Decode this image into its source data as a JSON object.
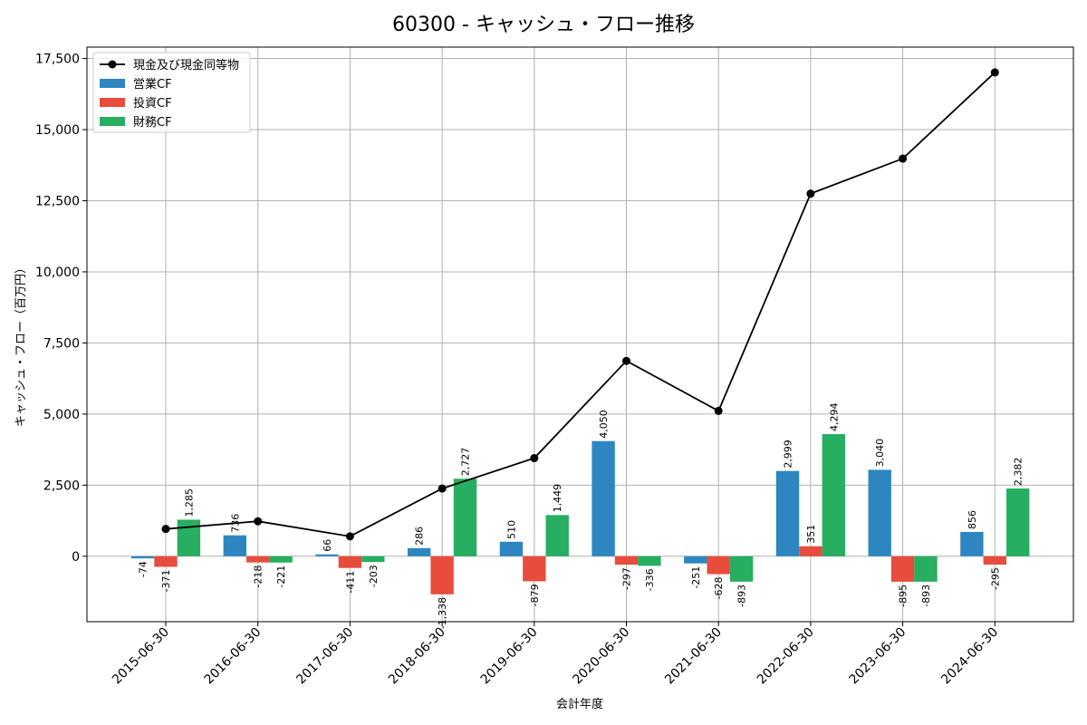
{
  "chart_data": {
    "type": "bar",
    "title": "60300 - キャッシュ・フロー推移",
    "xlabel": "会計年度",
    "ylabel": "キャッシュ・フロー（百万円）",
    "ylim": [
      -2300,
      17900
    ],
    "yticks": [
      0,
      2500,
      5000,
      7500,
      10000,
      12500,
      15000,
      17500
    ],
    "ytick_labels": [
      "0",
      "2,500",
      "5,000",
      "7,500",
      "10,000",
      "12,500",
      "15,000",
      "17,500"
    ],
    "grid": true,
    "legend_position": "top-left",
    "categories": [
      "2015-06-30",
      "2016-06-30",
      "2017-06-30",
      "2018-06-30",
      "2019-06-30",
      "2020-06-30",
      "2021-06-30",
      "2022-06-30",
      "2023-06-30",
      "2024-06-30"
    ],
    "series": [
      {
        "name": "営業CF",
        "kind": "bar",
        "color": "#2e86c1",
        "values": [
          -74,
          736,
          66,
          286,
          510,
          4050,
          -251,
          2999,
          3040,
          856
        ],
        "labels": [
          "-74",
          "736",
          "66",
          "286",
          "510",
          "4,050",
          "-251",
          "2,999",
          "3,040",
          "856"
        ]
      },
      {
        "name": "投資CF",
        "kind": "bar",
        "color": "#e74c3c",
        "values": [
          -371,
          -218,
          -411,
          -1338,
          -879,
          -297,
          -628,
          351,
          -895,
          -295
        ],
        "labels": [
          "-371",
          "-218",
          "-411",
          "-1,338",
          "-879",
          "-297",
          "-628",
          "351",
          "-895",
          "-295"
        ]
      },
      {
        "name": "財務CF",
        "kind": "bar",
        "color": "#27ae60",
        "values": [
          1285,
          -221,
          -203,
          2727,
          1449,
          -336,
          -893,
          4294,
          -893,
          2382
        ],
        "labels": [
          "1,285",
          "-221",
          "-203",
          "2,727",
          "1,449",
          "-336",
          "-893",
          "4,294",
          "-893",
          "2,382"
        ]
      },
      {
        "name": "現金及び現金同等物",
        "kind": "line",
        "color": "#000000",
        "values": [
          960,
          1230,
          700,
          2380,
          3450,
          6870,
          5110,
          12750,
          13980,
          17010
        ]
      }
    ],
    "legend_order": [
      "現金及び現金同等物",
      "営業CF",
      "投資CF",
      "財務CF"
    ]
  }
}
